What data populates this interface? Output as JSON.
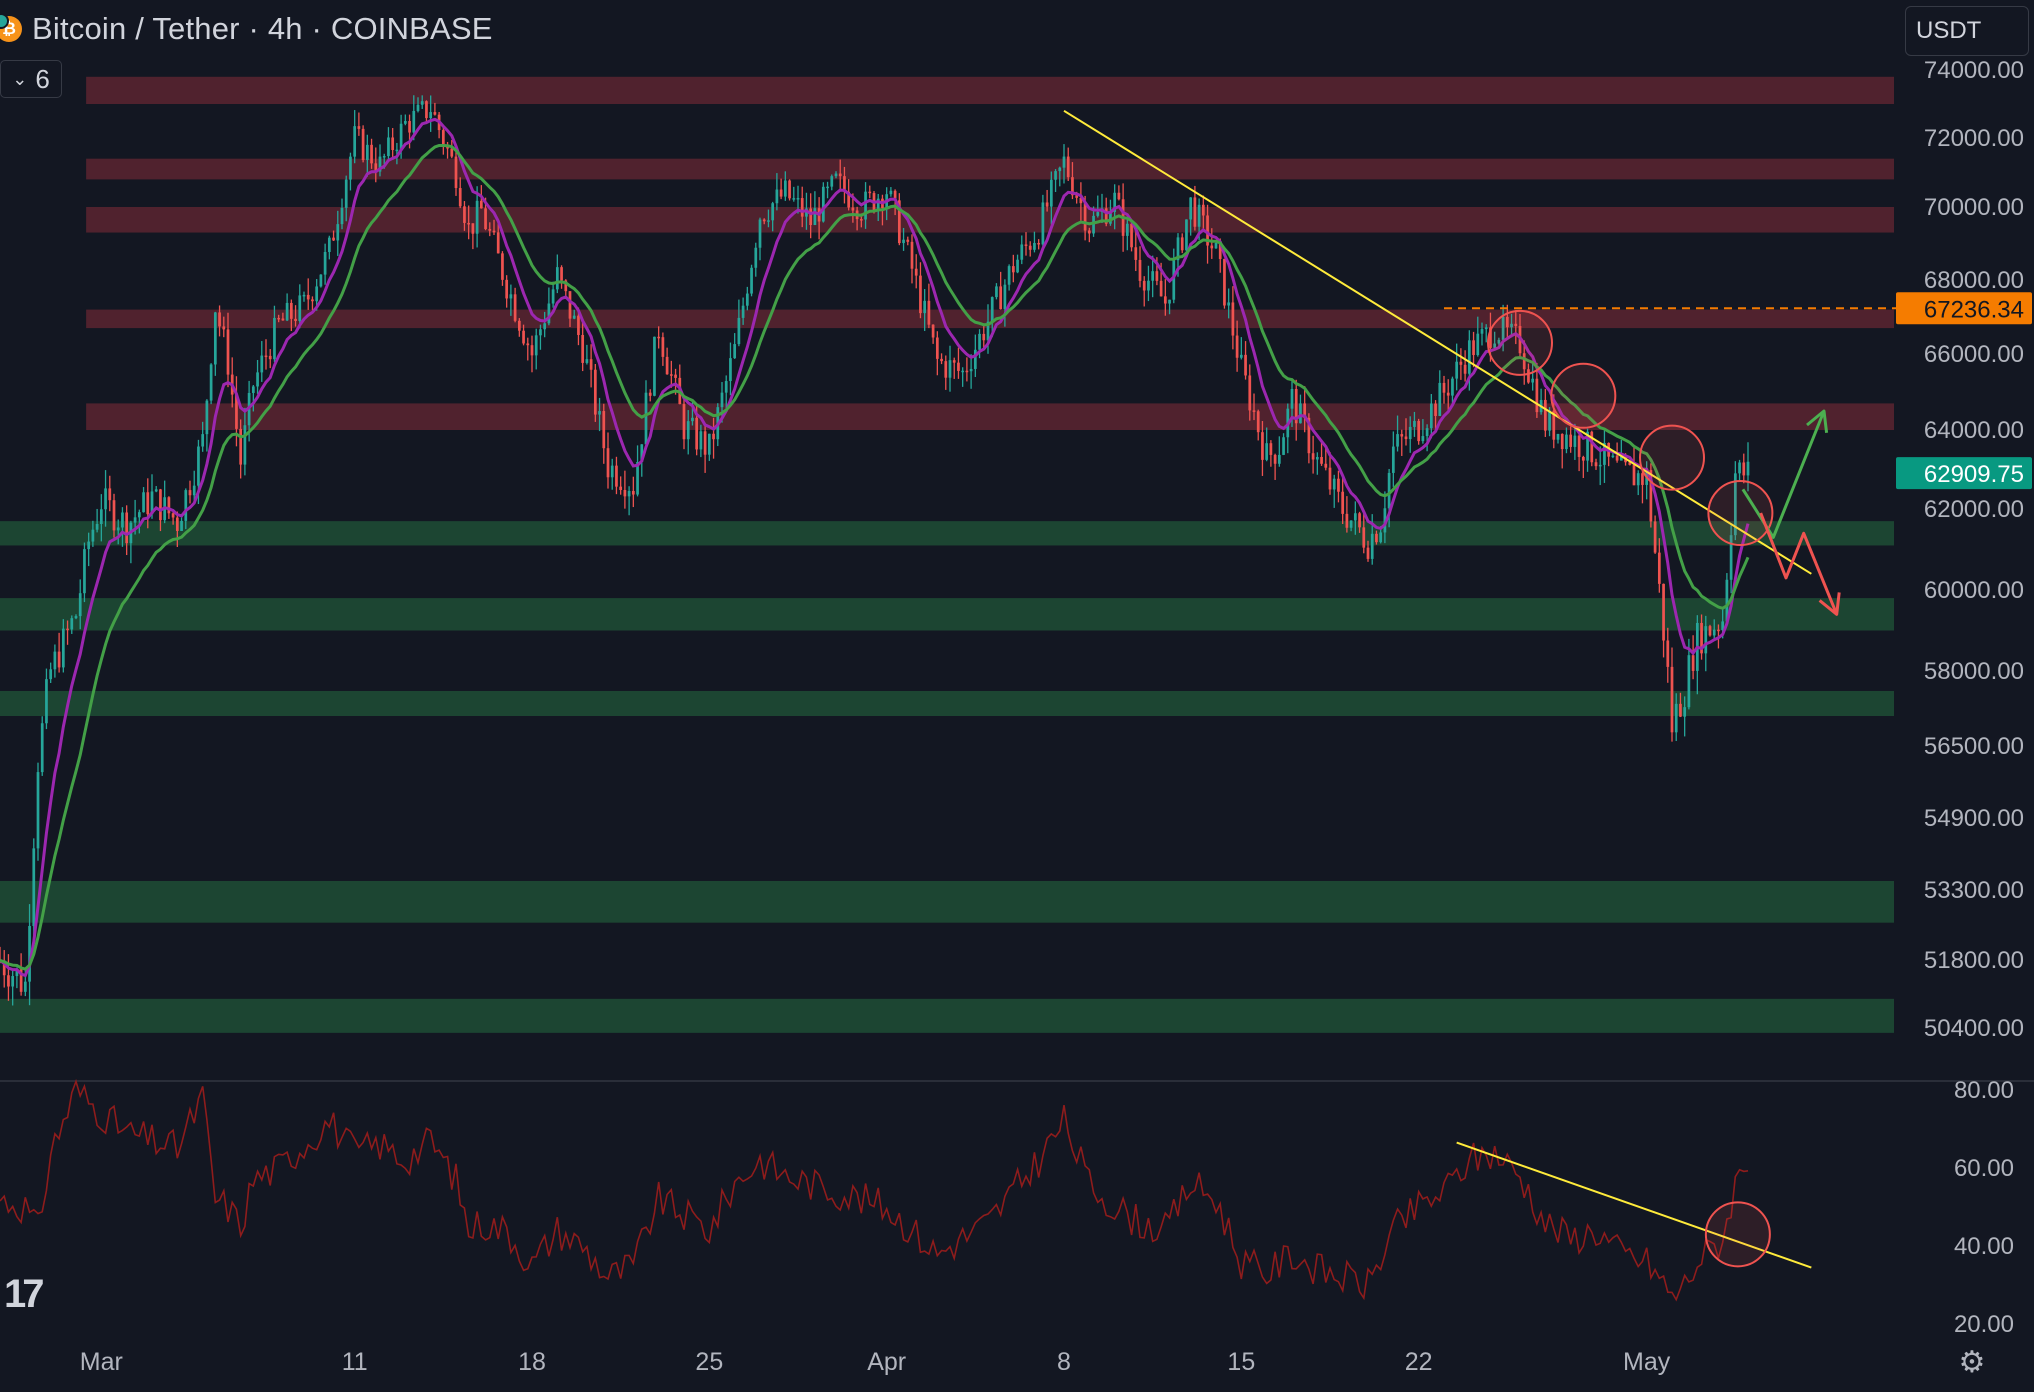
{
  "header": {
    "title": "Bitcoin / Tether · 4h · COINBASE",
    "coin_icon": "bitcoin-icon",
    "indicator_count": "6",
    "currency": "USDT"
  },
  "colors": {
    "background": "#131722",
    "bull": "#26a69a",
    "bear": "#ef5350",
    "resistance_zone": "#5c2430",
    "support_zone": "#1e4a34",
    "ema_fast": "#9c27b0",
    "ema_slow": "#43a047",
    "trendline": "#ffeb3b",
    "rsi": "#8e1c1c",
    "circle": "#ef5350",
    "label_orange": "#f57c00",
    "label_green": "#089981"
  },
  "chart_data": [
    {
      "type": "candlestick",
      "title": "Bitcoin / Tether · 4h · COINBASE",
      "y_ticks": [
        "74000.00",
        "72000.00",
        "70000.00",
        "68000.00",
        "66000.00",
        "64000.00",
        "62000.00",
        "60000.00",
        "58000.00",
        "56500.00",
        "54900.00",
        "53300.00",
        "51800.00",
        "50400.00"
      ],
      "x_ticks": [
        "Mar",
        "11",
        "18",
        "25",
        "Apr",
        "8",
        "15",
        "22",
        "May"
      ],
      "x_tick_days": [
        0,
        10,
        17,
        24,
        31,
        38,
        45,
        52,
        61
      ],
      "x_range_days": [
        -4,
        71
      ],
      "last_price": {
        "value": 62909.75,
        "label": "62909.75"
      },
      "alert_line": {
        "value": 67236.34,
        "label": "67236.34",
        "from_day": 53
      },
      "resistance_zones": [
        [
          73000,
          73800
        ],
        [
          70800,
          71400
        ],
        [
          69300,
          70000
        ],
        [
          66700,
          67200
        ],
        [
          64000,
          64700
        ]
      ],
      "support_zones": [
        [
          61100,
          61700
        ],
        [
          59000,
          59800
        ],
        [
          57100,
          57600
        ],
        [
          52600,
          53500
        ],
        [
          50300,
          51000
        ]
      ],
      "price_path": [
        [
          -4,
          51800
        ],
        [
          -3,
          51300
        ],
        [
          -2.5,
          56200
        ],
        [
          -2,
          58000
        ],
        [
          -1,
          59400
        ],
        [
          -0.5,
          61200
        ],
        [
          0,
          62200
        ],
        [
          1,
          61600
        ],
        [
          2,
          62300
        ],
        [
          3,
          61700
        ],
        [
          4,
          63700
        ],
        [
          4.5,
          67300
        ],
        [
          5,
          65800
        ],
        [
          5.5,
          63200
        ],
        [
          6,
          65200
        ],
        [
          7,
          66800
        ],
        [
          8,
          67300
        ],
        [
          9,
          68800
        ],
        [
          10,
          72000
        ],
        [
          11,
          71200
        ],
        [
          12,
          72400
        ],
        [
          13,
          72900
        ],
        [
          14,
          71000
        ],
        [
          14.5,
          69400
        ],
        [
          15,
          69900
        ],
        [
          16,
          67900
        ],
        [
          17,
          66000
        ],
        [
          18,
          68100
        ],
        [
          19,
          66200
        ],
        [
          20,
          63100
        ],
        [
          21,
          62600
        ],
        [
          22,
          66700
        ],
        [
          23,
          64100
        ],
        [
          24,
          63500
        ],
        [
          25,
          66100
        ],
        [
          26,
          69800
        ],
        [
          27,
          70400
        ],
        [
          28,
          69600
        ],
        [
          29,
          70700
        ],
        [
          30,
          70000
        ],
        [
          31,
          70500
        ],
        [
          32,
          68300
        ],
        [
          33,
          65800
        ],
        [
          34,
          65500
        ],
        [
          35,
          66900
        ],
        [
          36,
          68400
        ],
        [
          37,
          69400
        ],
        [
          38,
          71300
        ],
        [
          39,
          69500
        ],
        [
          40,
          70200
        ],
        [
          41,
          68300
        ],
        [
          42,
          67400
        ],
        [
          43,
          70100
        ],
        [
          44,
          68700
        ],
        [
          45,
          65600
        ],
        [
          46,
          63300
        ],
        [
          46.5,
          63600
        ],
        [
          47,
          64800
        ],
        [
          48,
          63200
        ],
        [
          49,
          62000
        ],
        [
          50,
          61200
        ],
        [
          50.5,
          61700
        ],
        [
          51,
          63500
        ],
        [
          52,
          64100
        ],
        [
          53,
          65000
        ],
        [
          54,
          66100
        ],
        [
          55,
          66700
        ],
        [
          56,
          66300
        ],
        [
          57,
          64200
        ],
        [
          58,
          63800
        ],
        [
          59,
          63400
        ],
        [
          60,
          62900
        ],
        [
          61,
          62800
        ],
        [
          61.5,
          60000
        ],
        [
          62,
          56900
        ],
        [
          62.5,
          57700
        ],
        [
          63,
          58800
        ],
        [
          64,
          59300
        ],
        [
          64.5,
          62900
        ],
        [
          65,
          62909
        ]
      ],
      "ema_fast": {
        "name": "",
        "color": "#9c27b0"
      },
      "ema_slow": {
        "name": "",
        "color": "#43a047"
      },
      "trendline": {
        "from": [
          38,
          72800
        ],
        "to": [
          67.5,
          60400
        ]
      },
      "circles": [
        [
          56.0,
          66300
        ],
        [
          58.5,
          64900
        ],
        [
          62.0,
          63300
        ],
        [
          64.7,
          61900
        ]
      ],
      "projection_up": [
        [
          64.8,
          62500
        ],
        [
          66.0,
          61300
        ],
        [
          68.0,
          64500
        ]
      ],
      "projection_down": [
        [
          65.5,
          61900
        ],
        [
          66.5,
          60300
        ],
        [
          67.2,
          61400
        ],
        [
          68.5,
          59400
        ]
      ]
    },
    {
      "type": "line",
      "title": "",
      "y_ticks": [
        "80.00",
        "60.00",
        "40.00",
        "20.00"
      ],
      "ylim": [
        18,
        82
      ],
      "rsi_path": [
        [
          -4,
          52
        ],
        [
          -3,
          50
        ],
        [
          -2.5,
          44
        ],
        [
          -2,
          64
        ],
        [
          -1,
          80
        ],
        [
          0,
          74
        ],
        [
          1,
          69
        ],
        [
          2,
          67
        ],
        [
          3,
          65
        ],
        [
          4,
          78
        ],
        [
          4.5,
          52
        ],
        [
          5,
          50
        ],
        [
          5.5,
          45
        ],
        [
          6,
          57
        ],
        [
          7,
          60
        ],
        [
          8,
          66
        ],
        [
          9,
          72
        ],
        [
          10,
          64
        ],
        [
          11,
          66
        ],
        [
          12,
          62
        ],
        [
          13,
          67
        ],
        [
          14,
          57
        ],
        [
          14.5,
          44
        ],
        [
          15,
          46
        ],
        [
          16,
          44
        ],
        [
          17,
          35
        ],
        [
          18,
          44
        ],
        [
          19,
          40
        ],
        [
          20,
          32
        ],
        [
          21,
          35
        ],
        [
          22,
          52
        ],
        [
          23,
          48
        ],
        [
          24,
          44
        ],
        [
          25,
          56
        ],
        [
          26,
          62
        ],
        [
          27,
          58
        ],
        [
          28,
          56
        ],
        [
          29,
          54
        ],
        [
          30,
          52
        ],
        [
          31,
          50
        ],
        [
          32,
          44
        ],
        [
          33,
          38
        ],
        [
          34,
          42
        ],
        [
          35,
          46
        ],
        [
          36,
          54
        ],
        [
          37,
          62
        ],
        [
          38,
          72
        ],
        [
          39,
          56
        ],
        [
          40,
          50
        ],
        [
          41,
          46
        ],
        [
          42,
          44
        ],
        [
          43,
          56
        ],
        [
          44,
          52
        ],
        [
          45,
          36
        ],
        [
          46,
          33
        ],
        [
          47,
          38
        ],
        [
          48,
          34
        ],
        [
          49,
          32
        ],
        [
          50,
          30
        ],
        [
          51,
          44
        ],
        [
          52,
          50
        ],
        [
          53,
          54
        ],
        [
          54,
          62
        ],
        [
          55,
          64
        ],
        [
          56,
          58
        ],
        [
          57,
          46
        ],
        [
          58,
          42
        ],
        [
          59,
          44
        ],
        [
          60,
          38
        ],
        [
          61,
          36
        ],
        [
          61.5,
          32
        ],
        [
          62,
          27
        ],
        [
          62.5,
          30
        ],
        [
          63,
          36
        ],
        [
          64,
          42
        ],
        [
          64.5,
          56
        ],
        [
          65,
          63
        ]
      ],
      "trendline": {
        "from": [
          53.5,
          66.5
        ],
        "to": [
          67.5,
          34.5
        ]
      },
      "circle": [
        64.6,
        43
      ]
    }
  ]
}
